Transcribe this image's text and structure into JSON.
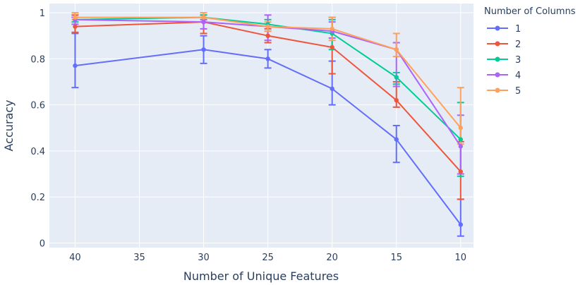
{
  "chart_data": {
    "type": "line",
    "xlabel": "Number of Unique Features",
    "ylabel": "Accuracy",
    "x": [
      40,
      30,
      25,
      20,
      15,
      10
    ],
    "x_ticks": [
      40,
      35,
      30,
      25,
      20,
      15,
      10
    ],
    "x_tick_labels": [
      "40",
      "35",
      "30",
      "25",
      "20",
      "15",
      "10"
    ],
    "xlim": [
      42,
      9
    ],
    "ylim": [
      -0.02,
      1.04
    ],
    "y_ticks": [
      0,
      0.2,
      0.4,
      0.6,
      0.8,
      1
    ],
    "y_tick_labels": [
      "0",
      "0.2",
      "0.4",
      "0.6",
      "0.8",
      "1"
    ],
    "grid": true,
    "plot_background": "#e5ecf6",
    "legend": {
      "title": "Number of Columns",
      "position": "right"
    },
    "series": [
      {
        "name": "1",
        "color": "#636efa",
        "values": [
          0.77,
          0.84,
          0.8,
          0.67,
          0.45,
          0.08
        ],
        "err_low": [
          0.675,
          0.78,
          0.76,
          0.6,
          0.35,
          0.03
        ],
        "err_high": [
          0.91,
          0.9,
          0.84,
          0.79,
          0.51,
          0.19
        ]
      },
      {
        "name": "2",
        "color": "#ef553b",
        "values": [
          0.94,
          0.96,
          0.9,
          0.85,
          0.62,
          0.31
        ],
        "err_low": [
          0.915,
          0.91,
          0.87,
          0.735,
          0.59,
          0.19
        ],
        "err_high": [
          0.99,
          0.99,
          0.93,
          0.98,
          0.7,
          0.44
        ]
      },
      {
        "name": "3",
        "color": "#00cc96",
        "values": [
          0.97,
          0.98,
          0.95,
          0.91,
          0.72,
          0.45
        ],
        "err_low": [
          0.96,
          0.97,
          0.92,
          0.84,
          0.69,
          0.29
        ],
        "err_high": [
          0.98,
          0.99,
          0.97,
          0.97,
          0.74,
          0.61
        ]
      },
      {
        "name": "4",
        "color": "#ab63fa",
        "values": [
          0.97,
          0.96,
          0.94,
          0.92,
          0.84,
          0.42
        ],
        "err_low": [
          0.95,
          0.93,
          0.88,
          0.89,
          0.68,
          0.3
        ],
        "err_high": [
          0.98,
          0.97,
          0.99,
          0.96,
          0.87,
          0.555
        ]
      },
      {
        "name": "5",
        "color": "#ffa15a",
        "values": [
          0.98,
          0.98,
          0.94,
          0.93,
          0.84,
          0.5
        ],
        "err_low": [
          0.97,
          0.96,
          0.92,
          0.88,
          0.81,
          0.43
        ],
        "err_high": [
          1.0,
          1.0,
          0.96,
          0.98,
          0.91,
          0.675
        ]
      }
    ]
  }
}
